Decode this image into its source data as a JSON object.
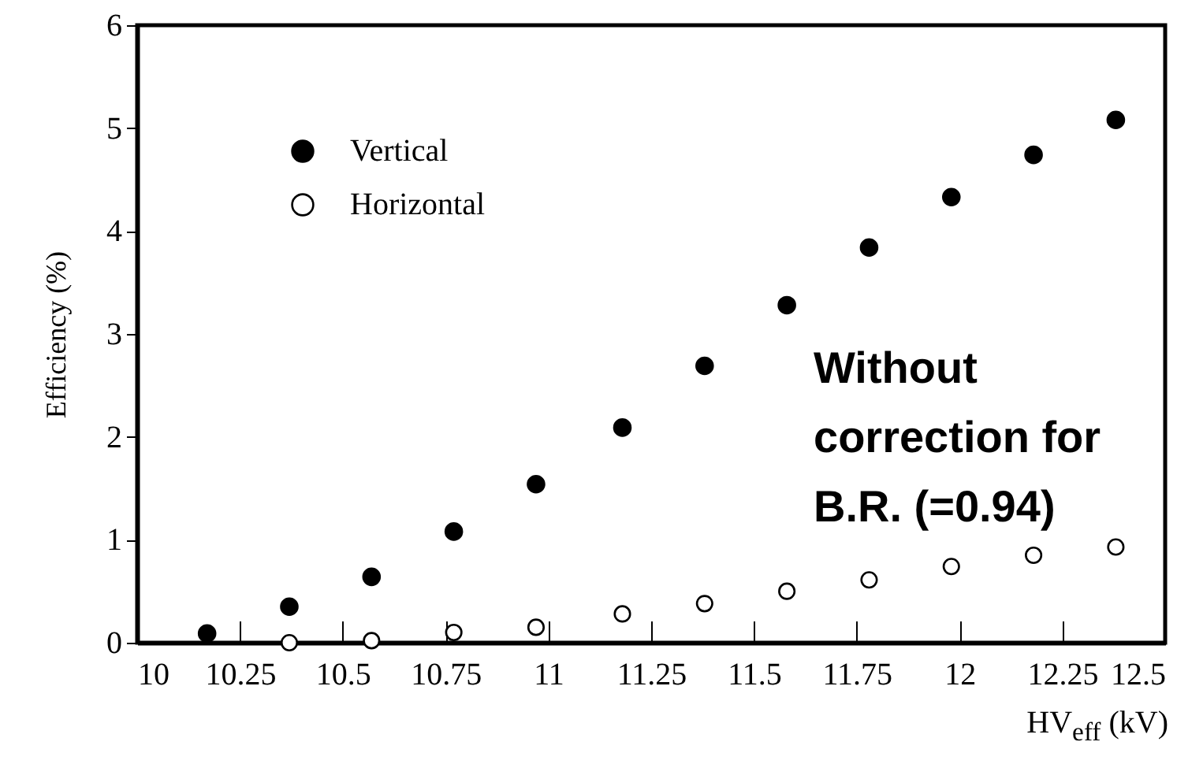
{
  "chart_data": {
    "type": "scatter",
    "ylabel": "Efficiency (%)",
    "xlabel": "HV$_{eff}$ (kV)",
    "annotations": [
      "Without correction for B.R. (=0.94)"
    ],
    "x": [
      10.17,
      10.37,
      10.57,
      10.77,
      10.97,
      11.18,
      11.38,
      11.58,
      11.78,
      11.98,
      12.18,
      12.38
    ],
    "series": [
      {
        "name": "Vertical",
        "color": "#000000",
        "values": [
          0.09,
          0.35,
          0.64,
          1.08,
          1.54,
          2.09,
          2.69,
          3.28,
          3.84,
          4.33,
          4.74,
          5.08
        ]
      },
      {
        "name": "Horizontal",
        "color": "#000000",
        "values": [
          null,
          0.0,
          0.02,
          0.1,
          0.15,
          0.28,
          0.38,
          0.5,
          0.61,
          0.74,
          0.85,
          0.93
        ]
      }
    ],
    "xlim": [
      10,
      12.5
    ],
    "xticks": [
      10,
      10.25,
      10.5,
      10.75,
      11,
      11.25,
      11.5,
      11.75,
      12,
      12.25,
      12.5
    ],
    "ylim": [
      0,
      6
    ],
    "yticks": [
      0,
      1,
      2,
      3,
      4,
      5,
      6
    ],
    "marker": "circle",
    "legend": "top left",
    "grid": false
  }
}
